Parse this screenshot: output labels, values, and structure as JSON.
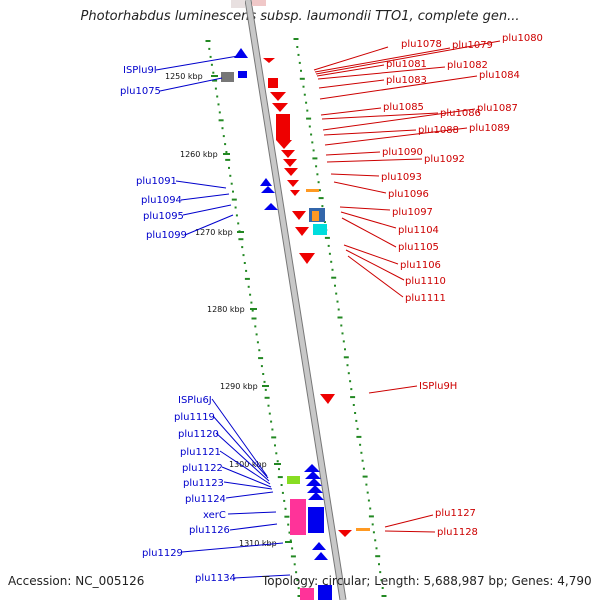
{
  "title": "Photorhabdus luminescens subsp. laumondii TTO1, complete gen...",
  "footer": {
    "accession": "Accession: NC_005126",
    "info": "Topology: circular; Length: 5,688,987 bp; Genes: 4,790"
  },
  "scale_labels": [
    "1250 kbp",
    "1260 kbp",
    "1270 kbp",
    "1280 kbp",
    "1290 kbp",
    "1300 kbp",
    "1310 kbp"
  ],
  "right_labels": [
    "plu1078",
    "plu1079",
    "plu1080",
    "plu1081",
    "plu1082",
    "plu1083",
    "plu1084",
    "plu1085",
    "plu1086",
    "plu1087",
    "plu1088",
    "plu1089",
    "plu1090",
    "plu1092",
    "plu1093",
    "plu1096",
    "plu1097",
    "plu1104",
    "plu1105",
    "plu1106",
    "plu1110",
    "plu1111",
    "ISPlu9H",
    "plu1127",
    "plu1128"
  ],
  "left_labels": [
    "ISPlu9I",
    "plu1075",
    "plu1091",
    "plu1094",
    "plu1095",
    "plu1099",
    "ISPlu6J",
    "plu1119",
    "plu1120",
    "plu1121",
    "plu1122",
    "plu1123",
    "plu1124",
    "xerC",
    "plu1126",
    "plu1129",
    "plu1134"
  ],
  "colors": {
    "forward_strand": "#0000ee",
    "reverse_strand": "#ee0000",
    "backbone": "#999999",
    "tick": "#228822",
    "pink_feature": "#ff3399",
    "green_feature": "#88dd22",
    "orange_feature": "#ff9922",
    "cyan_feature": "#00dddd",
    "blue_feature": "#3366aa"
  }
}
